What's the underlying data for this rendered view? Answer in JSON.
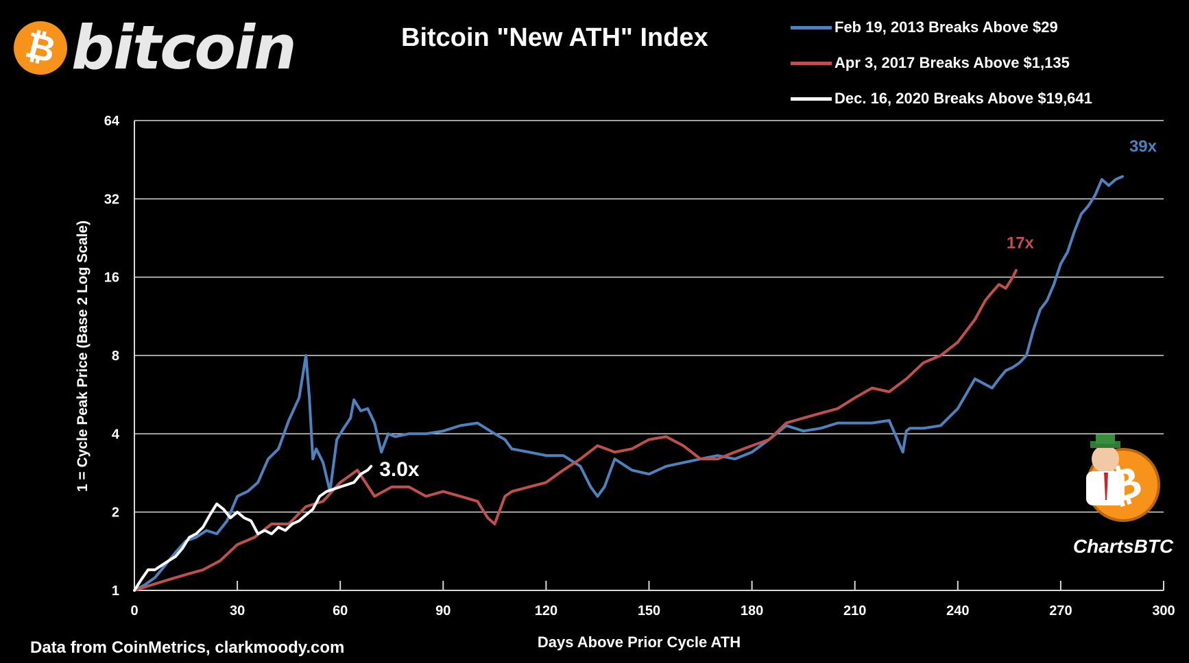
{
  "header": {
    "logo_symbol": "₿",
    "logo_text": "bitcoin",
    "title": "Bitcoin \"New ATH\" Index"
  },
  "footer": {
    "source": "Data from CoinMetrics, clarkmoody.com"
  },
  "badge": {
    "label": "ChartsBTC"
  },
  "colors": {
    "background": "#000000",
    "grid": "#d9d9d9",
    "series_2013": "#4f81bd",
    "series_2017": "#c0504d",
    "series_2020": "#ffffff"
  },
  "chart_data": {
    "type": "line",
    "xlabel": "Days Above Prior Cycle ATH",
    "ylabel": "1 = Cycle Peak Price (Base 2 Log Scale)",
    "xlim": [
      0,
      300
    ],
    "ylim": [
      1,
      64
    ],
    "y_scale": "log2",
    "grid": "horizontal",
    "legend_position": "top-right",
    "x_ticks": [
      "0",
      "30",
      "60",
      "90",
      "120",
      "150",
      "180",
      "210",
      "240",
      "270",
      "300"
    ],
    "y_ticks": [
      "1",
      "2",
      "4",
      "8",
      "16",
      "32",
      "64"
    ],
    "series": [
      {
        "name": "Feb 19, 2013 Breaks Above $29",
        "color": "#4f81bd",
        "end_label": "39x",
        "x": [
          0,
          3,
          6,
          9,
          12,
          15,
          18,
          21,
          24,
          27,
          30,
          33,
          36,
          39,
          42,
          45,
          48,
          50,
          51,
          52,
          53,
          55,
          57,
          59,
          61,
          63,
          64,
          66,
          68,
          70,
          72,
          74,
          76,
          80,
          85,
          90,
          95,
          100,
          105,
          108,
          110,
          115,
          120,
          125,
          130,
          133,
          135,
          137,
          140,
          145,
          150,
          155,
          160,
          165,
          170,
          175,
          180,
          185,
          190,
          195,
          200,
          205,
          210,
          215,
          220,
          224,
          225,
          226,
          230,
          235,
          240,
          245,
          250,
          252,
          254,
          256,
          258,
          260,
          262,
          264,
          266,
          268,
          270,
          272,
          274,
          276,
          278,
          280,
          282,
          284,
          286,
          288
        ],
        "values": [
          1.0,
          1.05,
          1.12,
          1.25,
          1.4,
          1.55,
          1.6,
          1.7,
          1.65,
          1.85,
          2.3,
          2.4,
          2.6,
          3.2,
          3.5,
          4.5,
          5.5,
          8.0,
          5.5,
          3.2,
          3.5,
          3.1,
          2.4,
          3.8,
          4.2,
          4.6,
          5.4,
          4.9,
          5.0,
          4.4,
          3.4,
          4.0,
          3.9,
          4.0,
          4.0,
          4.1,
          4.3,
          4.4,
          4.0,
          3.8,
          3.5,
          3.4,
          3.3,
          3.3,
          3.0,
          2.5,
          2.3,
          2.5,
          3.2,
          2.9,
          2.8,
          3.0,
          3.1,
          3.2,
          3.3,
          3.2,
          3.4,
          3.8,
          4.3,
          4.1,
          4.2,
          4.4,
          4.4,
          4.4,
          4.5,
          3.4,
          4.1,
          4.2,
          4.2,
          4.3,
          5.0,
          6.5,
          6.0,
          6.5,
          7.0,
          7.2,
          7.5,
          8.0,
          10.0,
          12.0,
          13.0,
          15.0,
          18.0,
          20.0,
          24.0,
          28.0,
          30.0,
          33.0,
          38.0,
          36.0,
          38.0,
          39.0
        ]
      },
      {
        "name": "Apr 3, 2017 Breaks Above $1,135",
        "color": "#c0504d",
        "end_label": "17x",
        "x": [
          0,
          5,
          10,
          15,
          20,
          25,
          30,
          35,
          40,
          45,
          50,
          55,
          60,
          65,
          70,
          75,
          80,
          85,
          90,
          95,
          100,
          103,
          105,
          108,
          110,
          115,
          120,
          125,
          130,
          135,
          140,
          145,
          150,
          155,
          160,
          165,
          170,
          175,
          180,
          185,
          190,
          195,
          200,
          205,
          210,
          215,
          220,
          225,
          230,
          235,
          240,
          245,
          248,
          250,
          252,
          254,
          256,
          257
        ],
        "values": [
          1.0,
          1.05,
          1.1,
          1.15,
          1.2,
          1.3,
          1.5,
          1.6,
          1.8,
          1.8,
          2.1,
          2.2,
          2.6,
          2.9,
          2.3,
          2.5,
          2.5,
          2.3,
          2.4,
          2.3,
          2.2,
          1.9,
          1.8,
          2.3,
          2.4,
          2.5,
          2.6,
          2.9,
          3.2,
          3.6,
          3.4,
          3.5,
          3.8,
          3.9,
          3.6,
          3.2,
          3.2,
          3.4,
          3.6,
          3.8,
          4.4,
          4.6,
          4.8,
          5.0,
          5.5,
          6.0,
          5.8,
          6.5,
          7.5,
          8.0,
          9.0,
          11.0,
          13.0,
          14.0,
          15.0,
          14.5,
          16.0,
          17.0
        ]
      },
      {
        "name": "Dec. 16, 2020 Breaks Above $19,641",
        "color": "#ffffff",
        "end_label": "3.0x",
        "x": [
          0,
          2,
          4,
          6,
          8,
          10,
          12,
          14,
          16,
          18,
          20,
          22,
          24,
          26,
          28,
          30,
          32,
          34,
          36,
          38,
          40,
          42,
          44,
          46,
          48,
          50,
          52,
          54,
          56,
          58,
          60,
          62,
          64,
          66,
          68,
          69
        ],
        "values": [
          1.0,
          1.1,
          1.2,
          1.2,
          1.25,
          1.3,
          1.35,
          1.45,
          1.6,
          1.65,
          1.75,
          1.95,
          2.15,
          2.05,
          1.9,
          2.0,
          1.9,
          1.85,
          1.65,
          1.7,
          1.65,
          1.75,
          1.7,
          1.8,
          1.85,
          1.95,
          2.05,
          2.3,
          2.4,
          2.45,
          2.5,
          2.55,
          2.6,
          2.8,
          2.9,
          3.0
        ]
      }
    ]
  }
}
